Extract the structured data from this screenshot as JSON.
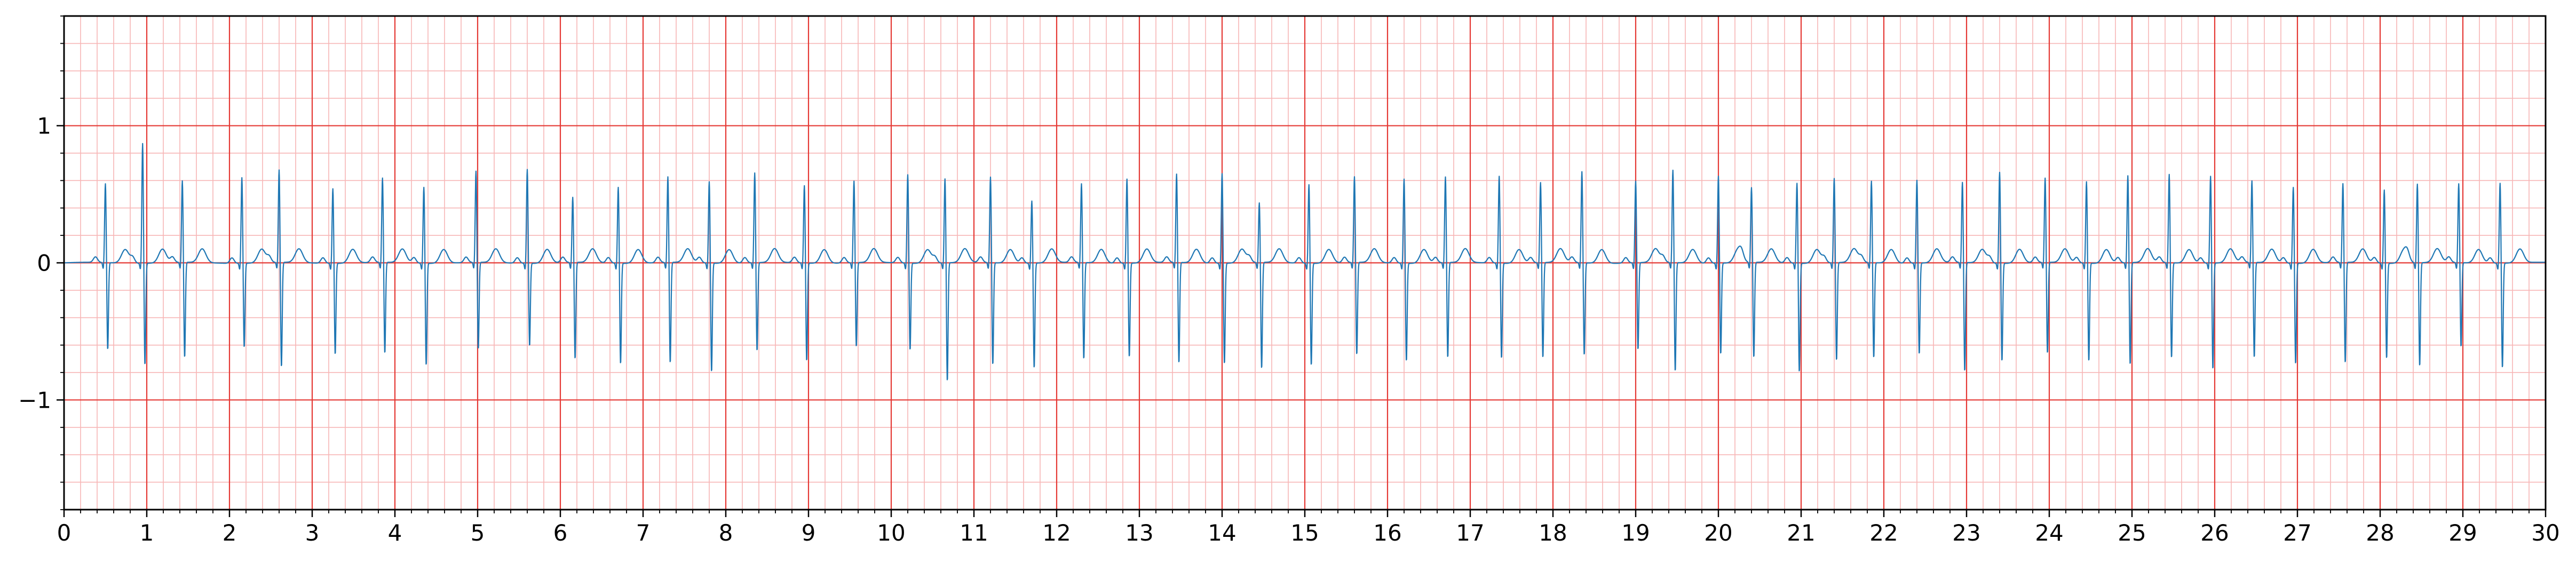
{
  "chart_data": {
    "type": "line",
    "title": "",
    "xlabel": "",
    "ylabel": "",
    "xlim": [
      0,
      30
    ],
    "ylim": [
      -1.8,
      1.8
    ],
    "x_ticks": [
      0,
      1,
      2,
      3,
      4,
      5,
      6,
      7,
      8,
      9,
      10,
      11,
      12,
      13,
      14,
      15,
      16,
      17,
      18,
      19,
      20,
      21,
      22,
      23,
      24,
      25,
      26,
      27,
      28,
      29,
      30
    ],
    "x_tick_labels": [
      "0",
      "1",
      "2",
      "3",
      "4",
      "5",
      "6",
      "7",
      "8",
      "9",
      "10",
      "11",
      "12",
      "13",
      "14",
      "15",
      "16",
      "17",
      "18",
      "19",
      "20",
      "21",
      "22",
      "23",
      "24",
      "25",
      "26",
      "27",
      "28",
      "29",
      "30"
    ],
    "y_ticks": [
      -1,
      0,
      1
    ],
    "y_tick_labels": [
      "−1",
      "0",
      "1"
    ],
    "x_minor_step": 0.2,
    "y_minor_step": 0.2,
    "grid": "on",
    "legend": "none",
    "series": [
      {
        "beat_times": [
          0.5,
          0.95,
          1.43,
          2.15,
          2.6,
          3.25,
          3.85,
          4.35,
          4.98,
          5.6,
          6.15,
          6.7,
          7.3,
          7.8,
          8.35,
          8.95,
          9.55,
          10.2,
          10.65,
          11.2,
          11.7,
          12.3,
          12.85,
          13.45,
          14.0,
          14.45,
          15.05,
          15.6,
          16.2,
          16.7,
          17.35,
          17.85,
          18.35,
          19.0,
          19.45,
          20.0,
          20.4,
          20.95,
          21.4,
          21.85,
          22.4,
          22.95,
          23.4,
          23.95,
          24.45,
          24.95,
          25.45,
          25.95,
          26.45,
          26.95,
          27.55,
          28.05,
          28.45,
          28.95,
          29.45
        ],
        "r_peaks": [
          0.58,
          0.88,
          0.6,
          0.63,
          0.68,
          0.55,
          0.62,
          0.56,
          0.67,
          0.69,
          0.48,
          0.56,
          0.63,
          0.6,
          0.66,
          0.57,
          0.6,
          0.65,
          0.62,
          0.63,
          0.46,
          0.58,
          0.62,
          0.65,
          0.66,
          0.44,
          0.58,
          0.63,
          0.62,
          0.63,
          0.64,
          0.59,
          0.67,
          0.6,
          0.68,
          0.64,
          0.55,
          0.59,
          0.62,
          0.6,
          0.61,
          0.59,
          0.67,
          0.62,
          0.6,
          0.64,
          0.65,
          0.64,
          0.6,
          0.56,
          0.58,
          0.54,
          0.58,
          0.58,
          0.59
        ],
        "s_troughs": [
          -0.64,
          -0.75,
          -0.7,
          -0.62,
          -0.77,
          -0.67,
          -0.67,
          -0.75,
          -0.64,
          -0.61,
          -0.71,
          -0.74,
          -0.74,
          -0.8,
          -0.65,
          -0.72,
          -0.62,
          -0.64,
          -0.87,
          -0.75,
          -0.77,
          -0.71,
          -0.69,
          -0.74,
          -0.74,
          -0.78,
          -0.75,
          -0.68,
          -0.72,
          -0.7,
          -0.7,
          -0.7,
          -0.68,
          -0.64,
          -0.8,
          -0.67,
          -0.7,
          -0.8,
          -0.72,
          -0.7,
          -0.67,
          -0.8,
          -0.72,
          -0.67,
          -0.72,
          -0.75,
          -0.7,
          -0.78,
          -0.7,
          -0.74,
          -0.74,
          -0.7,
          -0.76,
          -0.62,
          -0.77
        ],
        "t_peak": 0.1
      }
    ],
    "colors": {
      "signal": "#1f77b4",
      "grid_major": "#e53935",
      "grid_minor": "#f7b6b6",
      "axes": "#000000"
    }
  }
}
